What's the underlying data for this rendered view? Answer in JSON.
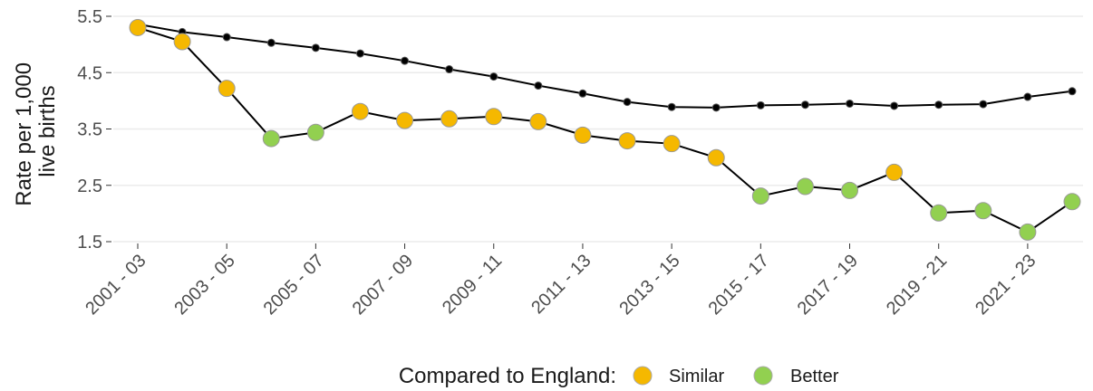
{
  "chart_data": {
    "type": "line",
    "title": "",
    "xlabel": "",
    "ylabel": "Rate per 1,000 live births",
    "ylabel_lines": [
      "Rate per 1,000",
      "live births"
    ],
    "ylim": [
      1.5,
      5.5
    ],
    "yticks": [
      1.5,
      2.5,
      3.5,
      4.5,
      5.5
    ],
    "yticklabels": [
      "1.5",
      "2.5",
      "3.5",
      "4.5",
      "5.5"
    ],
    "categories": [
      "2001 - 03",
      "2002 - 04",
      "2003 - 05",
      "2004 - 06",
      "2005 - 07",
      "2006 - 08",
      "2007 - 09",
      "2008 - 10",
      "2009 - 11",
      "2010 - 12",
      "2011 - 13",
      "2012 - 14",
      "2013 - 15",
      "2014 - 16",
      "2015 - 17",
      "2016 - 18",
      "2017 - 19",
      "2018 - 20",
      "2019 - 21",
      "2020 - 22",
      "2021 - 23",
      "2022 - 24"
    ],
    "xticklabels_shown": [
      "2001 - 03",
      "2003 - 05",
      "2005 - 07",
      "2007 - 09",
      "2009 - 11",
      "2011 - 13",
      "2013 - 15",
      "2015 - 17",
      "2017 - 19",
      "2019 - 21",
      "2021 - 23"
    ],
    "grid": true,
    "legend": {
      "position": "bottom",
      "title": "Compared to England:",
      "entries": [
        {
          "label": "Similar",
          "color": "#f5b800"
        },
        {
          "label": "Better",
          "color": "#92d050"
        }
      ]
    },
    "series": [
      {
        "color": "#000000",
        "marker": "small-black",
        "values": [
          5.36,
          5.22,
          5.13,
          5.03,
          4.94,
          4.84,
          4.71,
          4.56,
          4.43,
          4.27,
          4.13,
          3.98,
          3.89,
          3.88,
          3.92,
          3.93,
          3.95,
          3.91,
          3.93,
          3.94,
          4.07,
          4.17
        ]
      },
      {
        "color": "#000000",
        "marker": "comparison-colored",
        "values": [
          5.3,
          5.05,
          4.22,
          3.33,
          3.44,
          3.81,
          3.65,
          3.68,
          3.72,
          3.63,
          3.39,
          3.29,
          3.24,
          2.99,
          2.31,
          2.48,
          2.41,
          2.73,
          2.01,
          2.05,
          1.67,
          2.21
        ],
        "comparison": [
          "Similar",
          "Similar",
          "Similar",
          "Better",
          "Better",
          "Similar",
          "Similar",
          "Similar",
          "Similar",
          "Similar",
          "Similar",
          "Similar",
          "Similar",
          "Similar",
          "Better",
          "Better",
          "Better",
          "Similar",
          "Better",
          "Better",
          "Better",
          "Better"
        ]
      }
    ]
  }
}
